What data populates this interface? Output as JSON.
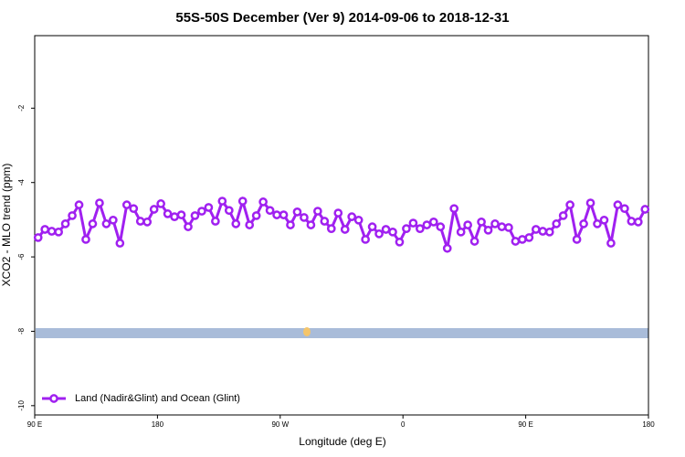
{
  "chart_data": {
    "type": "line",
    "title": "55S-50S December (Ver 9)   2014-09-06 to 2018-12-31",
    "xlabel": "Longitude (deg E)",
    "ylabel": "XCO2 - MLO trend (ppm)",
    "xlim": [
      90,
      540
    ],
    "ylim": [
      -10.25,
      -0.05
    ],
    "xticks": [
      {
        "value": 90,
        "label": "90 E"
      },
      {
        "value": 180,
        "label": "180"
      },
      {
        "value": 270,
        "label": "90 W"
      },
      {
        "value": 360,
        "label": "0"
      },
      {
        "value": 450,
        "label": "90 E"
      },
      {
        "value": 540,
        "label": "180"
      }
    ],
    "yticks": [
      -10,
      -8,
      -6,
      -4,
      -2
    ],
    "legend": "bottomleft",
    "x": [
      92.5,
      97.5,
      102.5,
      107.5,
      112.5,
      117.5,
      122.5,
      127.5,
      132.5,
      137.5,
      142.5,
      147.5,
      152.5,
      157.5,
      162.5,
      167.5,
      172.5,
      177.5,
      182.5,
      187.5,
      192.5,
      197.5,
      202.5,
      207.5,
      212.5,
      217.5,
      222.5,
      227.5,
      232.5,
      237.5,
      242.5,
      247.5,
      252.5,
      257.5,
      262.5,
      267.5,
      272.5,
      277.5,
      282.5,
      287.5,
      292.5,
      297.5,
      302.5,
      307.5,
      312.5,
      317.5,
      322.5,
      327.5,
      332.5,
      337.5,
      342.5,
      347.5,
      352.5,
      357.5,
      362.5,
      367.5,
      372.5,
      377.5,
      382.5,
      387.5,
      392.5,
      397.5,
      402.5,
      407.5,
      412.5,
      417.5,
      422.5,
      427.5,
      432.5,
      437.5,
      442.5,
      447.5,
      452.5,
      457.5,
      462.5,
      467.5,
      472.5,
      477.5,
      482.5,
      487.5,
      492.5,
      497.5,
      502.5,
      507.5,
      512.5,
      517.5,
      522.5,
      527.5,
      532.5,
      537.5
    ],
    "series": [
      {
        "name": "Land (Nadir&Glint) and Ocean (Glint)",
        "color": "#a020f0",
        "values": [
          -5.48,
          -5.26,
          -5.31,
          -5.33,
          -5.11,
          -4.89,
          -4.6,
          -5.53,
          -5.11,
          -4.55,
          -5.11,
          -5.01,
          -5.63,
          -4.6,
          -4.7,
          -5.04,
          -5.06,
          -4.72,
          -4.57,
          -4.84,
          -4.92,
          -4.87,
          -5.19,
          -4.89,
          -4.77,
          -4.67,
          -5.04,
          -4.5,
          -4.75,
          -5.11,
          -4.5,
          -5.14,
          -4.89,
          -4.52,
          -4.75,
          -4.87,
          -4.87,
          -5.14,
          -4.79,
          -4.94,
          -5.14,
          -4.77,
          -5.04,
          -5.24,
          -4.82,
          -5.26,
          -4.92,
          -5.01,
          -5.53,
          -5.19,
          -5.38,
          -5.26,
          -5.33,
          -5.6,
          -5.24,
          -5.09,
          -5.24,
          -5.14,
          -5.06,
          -5.19,
          -5.77,
          -4.7,
          -5.33,
          -5.14,
          -5.58,
          -5.06,
          -5.28,
          -5.11,
          -5.19,
          -5.21,
          -5.58,
          -5.53,
          -5.48,
          -5.26,
          -5.31,
          -5.33,
          -5.11,
          -4.89,
          -4.6,
          -5.53,
          -5.11,
          -4.55,
          -5.11,
          -5.01,
          -5.63,
          -4.6,
          -4.7,
          -5.04,
          -5.06,
          -4.72
        ]
      }
    ]
  }
}
